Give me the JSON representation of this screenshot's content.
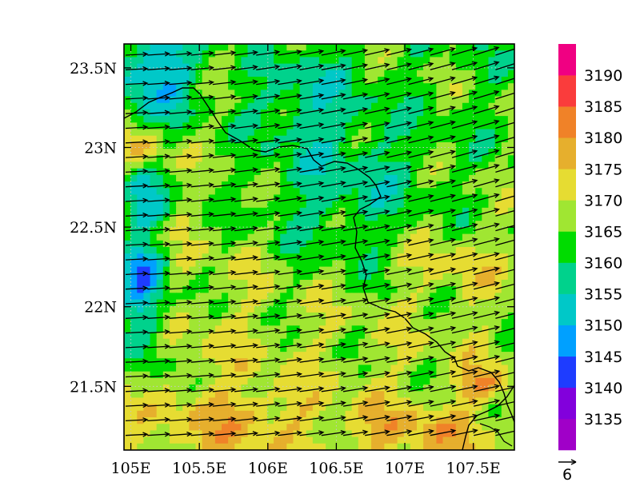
{
  "chart_data": {
    "type": "heatmap",
    "title": "",
    "xlabel": "",
    "ylabel": "",
    "overlay": "wind vectors",
    "x_range": [
      104.95,
      107.8
    ],
    "y_range": [
      21.1,
      23.65
    ],
    "x_ticks": [
      {
        "value": 105.0,
        "label": "105E"
      },
      {
        "value": 105.5,
        "label": "105.5E"
      },
      {
        "value": 106.0,
        "label": "106E"
      },
      {
        "value": 106.5,
        "label": "106.5E"
      },
      {
        "value": 107.0,
        "label": "107E"
      },
      {
        "value": 107.5,
        "label": "107.5E"
      }
    ],
    "y_ticks": [
      {
        "value": 21.5,
        "label": "21.5N"
      },
      {
        "value": 22.0,
        "label": "22N"
      },
      {
        "value": 22.5,
        "label": "22.5N"
      },
      {
        "value": 23.0,
        "label": "23N"
      },
      {
        "value": 23.5,
        "label": "23.5N"
      }
    ],
    "colorbar": {
      "levels": [
        "3135",
        "3140",
        "3145",
        "3150",
        "3155",
        "3160",
        "3165",
        "3170",
        "3175",
        "3180",
        "3185",
        "3190"
      ],
      "colors": [
        "#a000c8",
        "#8200dc",
        "#1e3cff",
        "#00a0ff",
        "#00c8c8",
        "#00d28c",
        "#00dc00",
        "#a0e632",
        "#e6dc32",
        "#e6af2d",
        "#f08228",
        "#fa3c3c",
        "#f00082"
      ]
    },
    "reference_vector": {
      "label": "6"
    }
  }
}
